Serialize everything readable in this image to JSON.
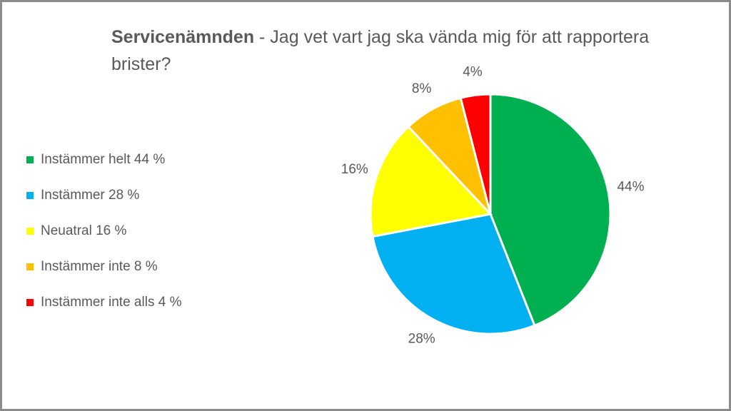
{
  "title": {
    "bold": "Servicenämnden",
    "rest": " - Jag vet vart jag ska vända mig för att rapportera brister?"
  },
  "legend": [
    {
      "label": "Instämmer helt 44 %",
      "color": "#00b050"
    },
    {
      "label": "Instämmer 28 %",
      "color": "#00b0f0"
    },
    {
      "label": "Neuatral 16 %",
      "color": "#ffff00"
    },
    {
      "label": "Instämmer inte 8 %",
      "color": "#ffc000"
    },
    {
      "label": "Instämmer inte alls 4 %",
      "color": "#ff0000"
    }
  ],
  "chart_data": {
    "type": "pie",
    "title": "Servicenämnden - Jag vet vart jag ska vända mig för att rapportera brister?",
    "categories": [
      "Instämmer helt 44 %",
      "Instämmer 28 %",
      "Neuatral 16 %",
      "Instämmer inte 8 %",
      "Instämmer inte alls 4 %"
    ],
    "values": [
      44,
      28,
      16,
      8,
      4
    ],
    "data_labels": [
      "44%",
      "28%",
      "16%",
      "8%",
      "4%"
    ],
    "colors": [
      "#00b050",
      "#00b0f0",
      "#ffff00",
      "#ffc000",
      "#ff0000"
    ],
    "legend_position": "left"
  }
}
